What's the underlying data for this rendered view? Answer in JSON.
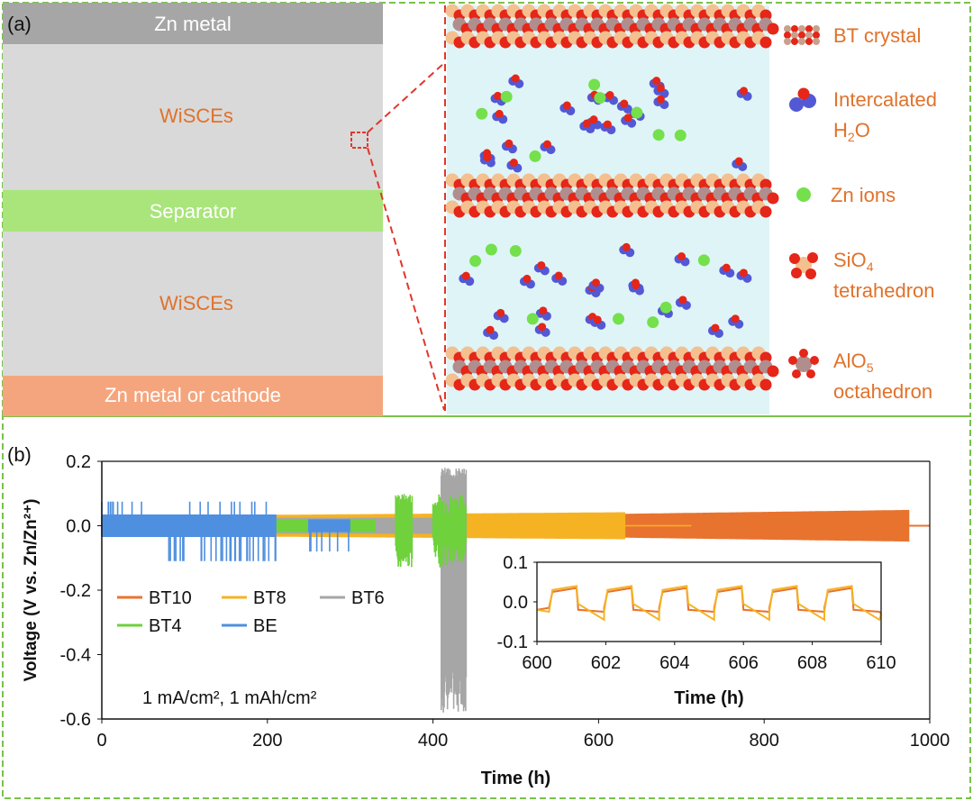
{
  "panel_a": {
    "tag": "(a)",
    "layers": {
      "top": "Zn metal",
      "electrolyte1": "WiSCEs",
      "separator": "Separator",
      "electrolyte2": "WiSCEs",
      "bottom": "Zn metal or cathode"
    },
    "legend": [
      {
        "line1": "BT crystal",
        "line2": ""
      },
      {
        "line1": "Intercalated",
        "line2": "H2O"
      },
      {
        "line1": "Zn ions",
        "line2": ""
      },
      {
        "line1": "SiO4",
        "line2": "tetrahedron"
      },
      {
        "line1": "AlO5",
        "line2": "octahedron"
      }
    ],
    "colors": {
      "zn_metal": "#a6a6a6",
      "electrolyte": "#d9d9d9",
      "separator": "#a9e57a",
      "cathode": "#f5a57d",
      "label_orange": "#e0722b",
      "water_bg": "#dff4f7",
      "border_green": "#79c24a",
      "zoom_red": "#e0372b"
    }
  },
  "panel_b": {
    "tag": "(b)",
    "condition_label": "1 mA/cm², 1 mAh/cm²"
  },
  "chart_data": [
    {
      "type": "line",
      "title": "",
      "xlabel": "Time (h)",
      "ylabel": "Voltage (V vs. Zn/Zn²⁺)",
      "xlim": [
        0,
        1000
      ],
      "ylim": [
        -0.6,
        0.2
      ],
      "xticks": [
        "0",
        "200",
        "400",
        "600",
        "800",
        "1000"
      ],
      "yticks": [
        "0.2",
        "0.0",
        "-0.2",
        "-0.4",
        "-0.6"
      ],
      "legend_placement": "left",
      "series": [
        {
          "name": "BT10",
          "color": "#e8732e",
          "x": [
            0,
            975
          ],
          "y_upper": [
            0.02,
            0.05
          ],
          "y_lower": [
            -0.02,
            -0.05
          ],
          "end_h": 975
        },
        {
          "name": "BT8",
          "color": "#f5b324",
          "x": [
            0,
            632
          ],
          "y_upper": [
            0.03,
            0.04
          ],
          "y_lower": [
            -0.03,
            -0.04
          ],
          "end_h": 632
        },
        {
          "name": "BT6",
          "color": "#a6a6a6",
          "x": [
            0,
            440
          ],
          "y_upper": [
            0.02,
            0.2
          ],
          "y_lower": [
            -0.02,
            -0.6
          ],
          "end_h": 440
        },
        {
          "name": "BT4",
          "color": "#6fd13c",
          "x": [
            0,
            440
          ],
          "y_upper": [
            0.03,
            0.1
          ],
          "y_lower": [
            -0.03,
            -0.15
          ],
          "end_h": 440
        },
        {
          "name": "BE",
          "color": "#4f8fe0",
          "x": [
            0,
            210
          ],
          "y_upper": [
            0.04,
            0.08
          ],
          "y_lower": [
            -0.04,
            -0.12
          ],
          "end_h": 210
        }
      ]
    },
    {
      "type": "line",
      "title": "",
      "xlabel": "Time (h)",
      "ylabel": "",
      "xlim": [
        600,
        610
      ],
      "ylim": [
        -0.1,
        0.1
      ],
      "xticks": [
        "600",
        "602",
        "604",
        "606",
        "608",
        "610"
      ],
      "yticks": [
        "0.1",
        "0.0",
        "-0.1"
      ],
      "series": [
        {
          "name": "BT10",
          "color": "#e8732e",
          "upper": 0.035,
          "lower": -0.025
        },
        {
          "name": "BT8",
          "color": "#f5b324",
          "upper": 0.04,
          "lower": -0.045
        }
      ]
    }
  ]
}
